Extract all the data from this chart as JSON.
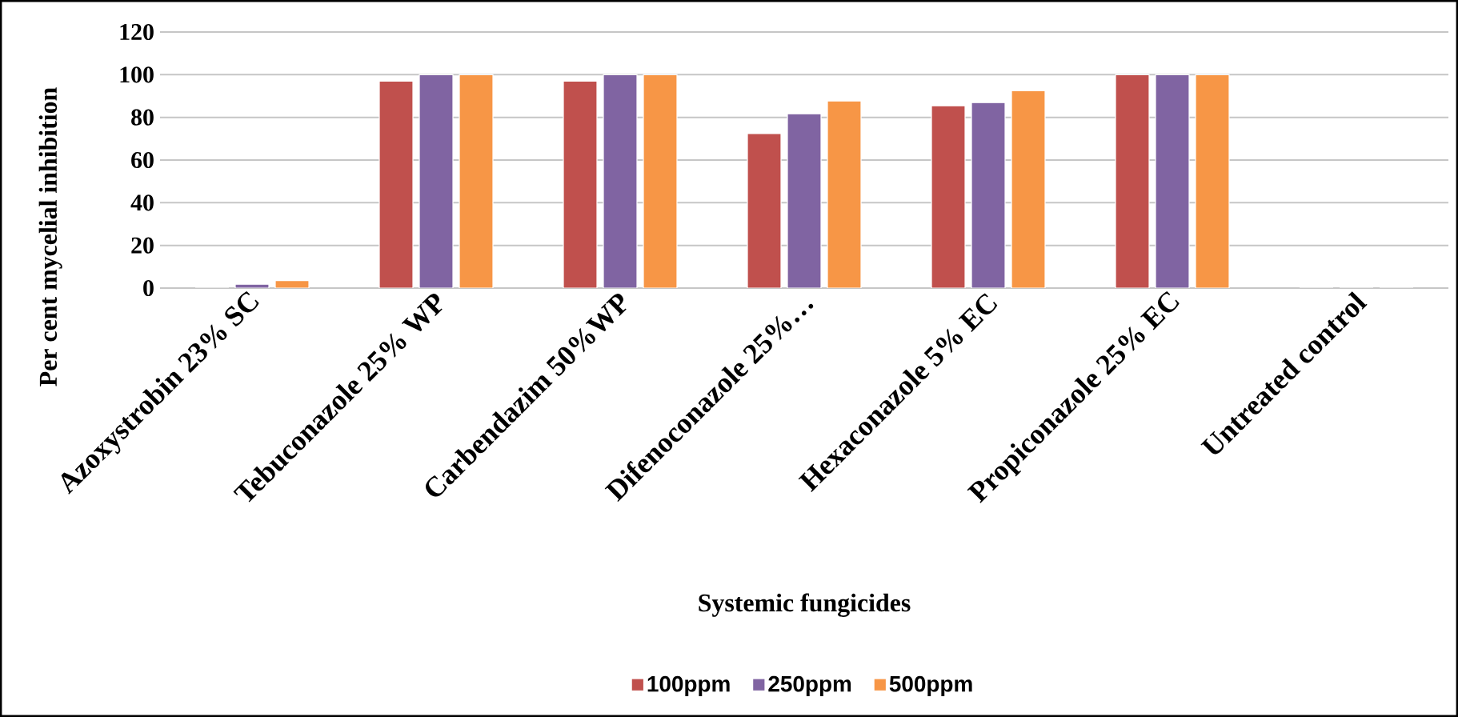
{
  "chart_data": {
    "type": "bar",
    "xlabel": "Systemic fungicides",
    "ylabel": "Per cent mycelial inhibition",
    "categories": [
      "Azoxystrobin 23% SC",
      "Tebuconazole 25% WP",
      "Carbendazim 50%WP",
      "Difenoconazole 25%…",
      "Hexaconazole 5% EC",
      "Propiconazole 25% EC",
      "Untreated control"
    ],
    "series": [
      {
        "name": "100ppm",
        "color": "#c0504d",
        "values": [
          0,
          97,
          97,
          72.4,
          85.4,
          100,
          0
        ]
      },
      {
        "name": "250ppm",
        "color": "#8064a2",
        "values": [
          1.8,
          100,
          100,
          81.7,
          86.9,
          100,
          0
        ]
      },
      {
        "name": "500ppm",
        "color": "#f79646",
        "values": [
          3.5,
          100,
          100,
          87.7,
          92.5,
          100,
          0
        ]
      }
    ],
    "ylim": [
      0,
      120
    ],
    "yticks": [
      0,
      20,
      40,
      60,
      80,
      100,
      120
    ],
    "grid": "y",
    "legend": "bottom"
  }
}
